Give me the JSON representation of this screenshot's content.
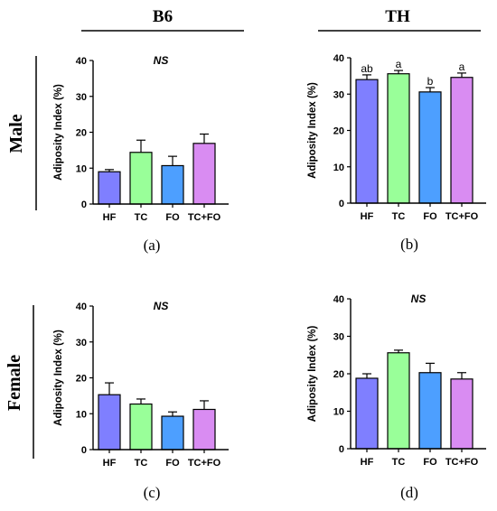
{
  "headers": {
    "left": "B6",
    "right": "TH"
  },
  "row_labels": {
    "top": "Male",
    "bottom": "Female"
  },
  "colors": {
    "HF": "#7f7fff",
    "TC": "#99ff99",
    "FO": "#4d9fff",
    "TC+FO": "#d98cf2"
  },
  "chart_data": [
    {
      "id": "a",
      "type": "bar",
      "panel_label": "(a)",
      "annotation": "NS",
      "categories": [
        "HF",
        "TC",
        "FO",
        "TC+FO"
      ],
      "values": [
        9.0,
        14.4,
        10.7,
        16.9
      ],
      "errors": [
        0.6,
        3.4,
        2.6,
        2.6
      ],
      "letters": [],
      "ylabel": "Adiposity Index (%)",
      "ylim": [
        0,
        40
      ],
      "yticks": [
        0,
        10,
        20,
        30,
        40
      ]
    },
    {
      "id": "b",
      "type": "bar",
      "panel_label": "(b)",
      "annotation": "",
      "categories": [
        "HF",
        "TC",
        "FO",
        "TC+FO"
      ],
      "values": [
        34.0,
        35.6,
        30.6,
        34.6
      ],
      "errors": [
        1.3,
        0.9,
        1.2,
        1.2
      ],
      "letters": [
        "ab",
        "a",
        "b",
        "a"
      ],
      "ylabel": "Adiposity Index (%)",
      "ylim": [
        0,
        40
      ],
      "yticks": [
        0,
        10,
        20,
        30,
        40
      ]
    },
    {
      "id": "c",
      "type": "bar",
      "panel_label": "(c)",
      "annotation": "NS",
      "categories": [
        "HF",
        "TC",
        "FO",
        "TC+FO"
      ],
      "values": [
        15.3,
        12.7,
        9.3,
        11.2
      ],
      "errors": [
        3.3,
        1.4,
        1.2,
        2.4
      ],
      "letters": [],
      "ylabel": "Adiposity Index (%)",
      "ylim": [
        0,
        40
      ],
      "yticks": [
        0,
        10,
        20,
        30,
        40
      ]
    },
    {
      "id": "d",
      "type": "bar",
      "panel_label": "(d)",
      "annotation": "NS",
      "categories": [
        "HF",
        "TC",
        "FO",
        "TC+FO"
      ],
      "values": [
        18.8,
        25.6,
        20.3,
        18.6
      ],
      "errors": [
        1.2,
        0.7,
        2.5,
        1.7
      ],
      "letters": [],
      "ylabel": "Adiposity Index (%)",
      "ylim": [
        0,
        40
      ],
      "yticks": [
        0,
        10,
        20,
        30,
        40
      ]
    }
  ]
}
